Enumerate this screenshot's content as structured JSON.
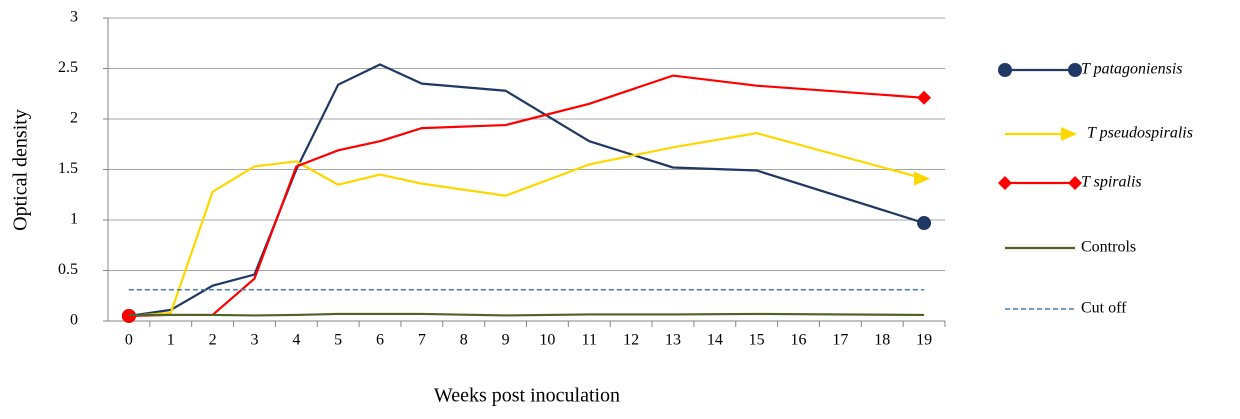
{
  "chart_data": {
    "type": "line",
    "x_label": "Weeks post inoculation",
    "y_label": "Optical density",
    "x": [
      0,
      1,
      2,
      3,
      4,
      5,
      6,
      7,
      9,
      11,
      13,
      15,
      19
    ],
    "xticks": [
      0,
      1,
      2,
      3,
      4,
      5,
      6,
      7,
      8,
      9,
      10,
      11,
      12,
      13,
      14,
      15,
      16,
      17,
      18,
      19
    ],
    "xlim": [
      -0.5,
      19.5
    ],
    "ylim": [
      0,
      3
    ],
    "yticks": [
      0,
      0.5,
      1,
      1.5,
      2,
      2.5,
      3
    ],
    "grid": true,
    "legend": "right",
    "series": [
      {
        "name": "T patagoniensis",
        "color": "#1f3864",
        "marker": "circle",
        "italic": true,
        "values": [
          0.05,
          0.11,
          0.35,
          0.46,
          1.5,
          2.34,
          2.54,
          2.35,
          2.28,
          1.78,
          1.52,
          1.49,
          0.97
        ]
      },
      {
        "name": "T pseudospiralis",
        "color": "#ffd700",
        "marker": "arrow",
        "italic": true,
        "values": [
          0.05,
          0.08,
          1.28,
          1.53,
          1.58,
          1.35,
          1.45,
          1.36,
          1.24,
          1.55,
          1.72,
          1.86,
          1.41
        ]
      },
      {
        "name": "T spiralis",
        "color": "#ff0000",
        "marker": "diamond",
        "italic": true,
        "values": [
          0.05,
          0.06,
          0.06,
          0.42,
          1.53,
          1.69,
          1.78,
          1.91,
          1.94,
          2.15,
          2.43,
          2.33,
          2.21
        ]
      },
      {
        "name": "Controls",
        "color": "#4f6228",
        "italic": false,
        "values": [
          0.06,
          0.06,
          0.06,
          0.055,
          0.06,
          0.07,
          0.07,
          0.07,
          0.055,
          0.065,
          0.065,
          0.07,
          0.06
        ]
      },
      {
        "name": "Cut off",
        "color": "#4a7ebb",
        "dash": true,
        "italic": false,
        "values": [
          0.31,
          0.31,
          0.31,
          0.31,
          0.31,
          0.31,
          0.31,
          0.31,
          0.31,
          0.31,
          0.31,
          0.31,
          0.31
        ]
      }
    ]
  }
}
